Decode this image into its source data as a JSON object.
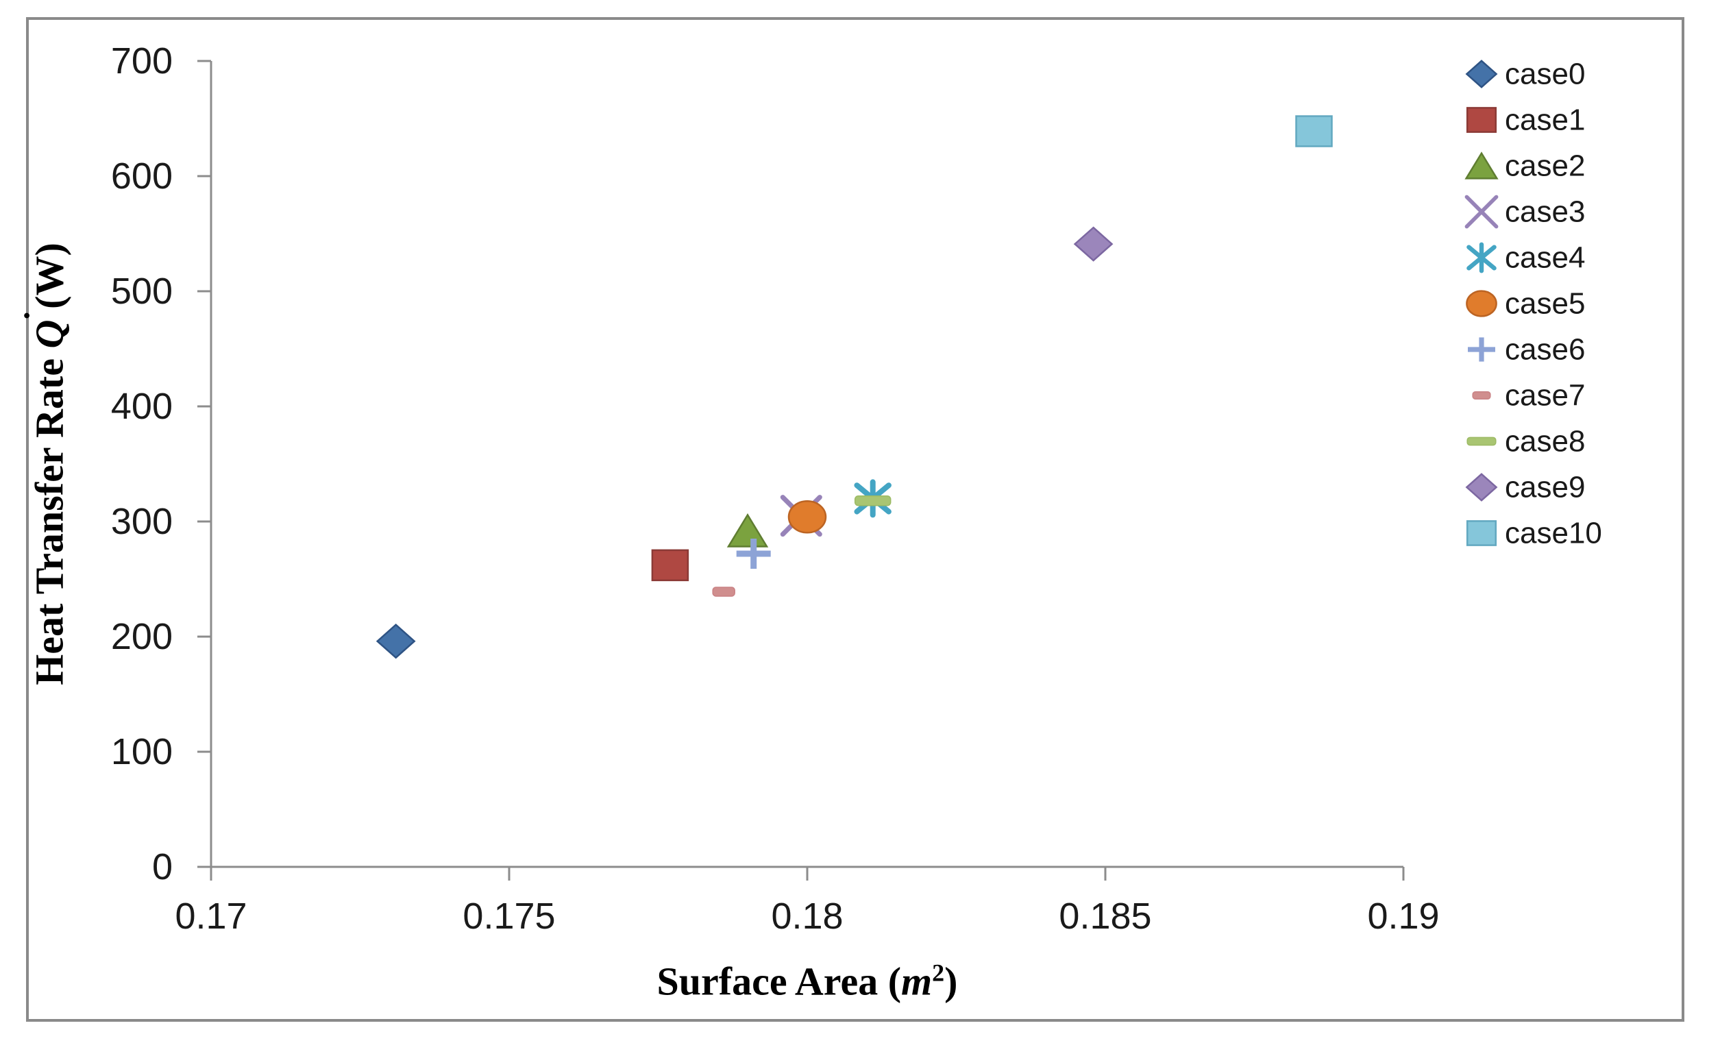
{
  "chart_data": {
    "type": "scatter",
    "title": "",
    "x_axis": {
      "label": "Surface Area (m²)",
      "label_parts": {
        "prefix": "Surface Area (",
        "sym": "m",
        "sup": "2",
        "suffix": ")"
      },
      "min": 0.17,
      "max": 0.19,
      "ticks": [
        {
          "v": 0.17,
          "label": "0.17"
        },
        {
          "v": 0.175,
          "label": "0.175"
        },
        {
          "v": 0.18,
          "label": "0.18"
        },
        {
          "v": 0.185,
          "label": "0.185"
        },
        {
          "v": 0.19,
          "label": "0.19"
        }
      ]
    },
    "y_axis": {
      "label": "Heat Transfer Rate Q̇ (W)",
      "label_parts": {
        "prefix": "Heat Transfer Rate ",
        "sym": "Q",
        "dot": "˙",
        "suffix": "(W)"
      },
      "min": 0,
      "max": 700,
      "ticks": [
        {
          "v": 0,
          "label": "0"
        },
        {
          "v": 100,
          "label": "100"
        },
        {
          "v": 200,
          "label": "200"
        },
        {
          "v": 300,
          "label": "300"
        },
        {
          "v": 400,
          "label": "400"
        },
        {
          "v": 500,
          "label": "500"
        },
        {
          "v": 600,
          "label": "600"
        },
        {
          "v": 700,
          "label": "700"
        }
      ]
    },
    "legend": {
      "position": "right"
    },
    "series": [
      {
        "name": "case0",
        "x": 0.1731,
        "y": 196,
        "marker": "diamond",
        "fill": "#4472A8",
        "stroke": "#2E5384"
      },
      {
        "name": "case1",
        "x": 0.1777,
        "y": 262,
        "marker": "square",
        "fill": "#AF4842",
        "stroke": "#8B3A36"
      },
      {
        "name": "case2",
        "x": 0.179,
        "y": 292,
        "marker": "triangle",
        "fill": "#7BA23F",
        "stroke": "#5F7D31"
      },
      {
        "name": "case3",
        "x": 0.1799,
        "y": 305,
        "marker": "x",
        "fill": "#9783B8",
        "stroke": "#9783B8"
      },
      {
        "name": "case4",
        "x": 0.1811,
        "y": 320,
        "marker": "asterisk",
        "fill": "#44A5C4",
        "stroke": "#44A5C4"
      },
      {
        "name": "case5",
        "x": 0.18,
        "y": 304,
        "marker": "circle",
        "fill": "#E07C2C",
        "stroke": "#BC6423"
      },
      {
        "name": "case6",
        "x": 0.1791,
        "y": 272,
        "marker": "plus",
        "fill": "#8DA3D6",
        "stroke": "#8DA3D6"
      },
      {
        "name": "case7",
        "x": 0.1786,
        "y": 239,
        "marker": "dash-small",
        "fill": "#D08E8E",
        "stroke": "#C98184"
      },
      {
        "name": "case8",
        "x": 0.1811,
        "y": 318,
        "marker": "dash",
        "fill": "#A9C572",
        "stroke": "#9CBA64"
      },
      {
        "name": "case9",
        "x": 0.1848,
        "y": 541,
        "marker": "diamond",
        "fill": "#9B86BB",
        "stroke": "#7C67A1"
      },
      {
        "name": "case10",
        "x": 0.1885,
        "y": 639,
        "marker": "square",
        "fill": "#85C6DA",
        "stroke": "#62A8C0"
      }
    ]
  },
  "styles": {
    "axis_color": "#8C8C8C",
    "frame_border": "#8A8A8A",
    "text_color": "#1A1A1A",
    "background": "#FFFFFF"
  }
}
